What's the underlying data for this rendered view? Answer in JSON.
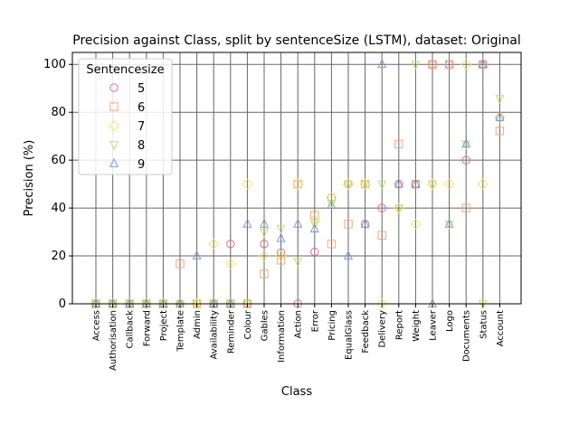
{
  "chart_data": {
    "type": "scatter",
    "title": "Precision against Class, split by sentenceSize (LSTM), dataset: Original",
    "xlabel": "Class",
    "ylabel": "Precision (%)",
    "ylim": [
      0,
      105
    ],
    "yticks": [
      0,
      20,
      40,
      60,
      80,
      100
    ],
    "grid": true,
    "legend": {
      "title": "Sentencesize",
      "placement": "top-left"
    },
    "categories": [
      "Access",
      "Authorisation",
      "Callback",
      "Forward",
      "Project",
      "Template",
      "Admin",
      "Availability",
      "Reminder",
      "Colour",
      "Gables",
      "Information",
      "Action",
      "Error",
      "Pricing",
      "EqualGlass",
      "Feedback",
      "Delivery",
      "Report",
      "Weight",
      "Leaver",
      "Logo",
      "Documents",
      "Status",
      "Account"
    ],
    "series": [
      {
        "name": "5",
        "marker": "circle",
        "color": "#d6607e",
        "values": [
          0,
          0,
          0,
          0,
          0,
          0,
          0,
          0,
          25,
          0,
          25,
          21.4,
          0,
          21.7,
          44.4,
          50,
          33.3,
          40,
          50,
          50,
          100,
          100,
          60,
          100,
          77.8
        ]
      },
      {
        "name": "6",
        "marker": "square",
        "color": "#f5a06e",
        "values": [
          0,
          0,
          0,
          0,
          0,
          16.7,
          0,
          0,
          0,
          0,
          12.5,
          18.2,
          50,
          37,
          25,
          33.3,
          50,
          28.6,
          66.7,
          50,
          100,
          100,
          40,
          100,
          72.2
        ]
      },
      {
        "name": "7",
        "marker": "diamond",
        "color": "#f8e05a",
        "values": [
          0,
          0,
          0,
          0,
          0,
          0,
          0,
          25,
          16.7,
          50,
          20,
          20,
          50,
          35,
          44.4,
          50,
          50,
          0,
          40,
          33.3,
          50,
          50,
          100,
          50,
          77.8
        ]
      },
      {
        "name": "8",
        "marker": "triangle-down",
        "color": "#bcdd5a",
        "values": [
          0,
          0,
          0,
          0,
          0,
          0,
          0,
          0,
          0,
          0,
          30,
          31.5,
          17.6,
          33.3,
          42,
          50,
          50,
          50,
          40,
          100,
          50,
          33.3,
          66.7,
          0,
          85.7
        ]
      },
      {
        "name": "9",
        "marker": "triangle-up",
        "color": "#6f8ed2",
        "values": [
          0,
          0,
          0,
          0,
          0,
          0,
          20,
          0,
          0,
          33.3,
          33.3,
          27.3,
          33.3,
          31.3,
          41.2,
          20,
          33.3,
          100,
          50,
          50,
          0,
          33.3,
          66.7,
          100,
          77.8
        ]
      }
    ]
  }
}
